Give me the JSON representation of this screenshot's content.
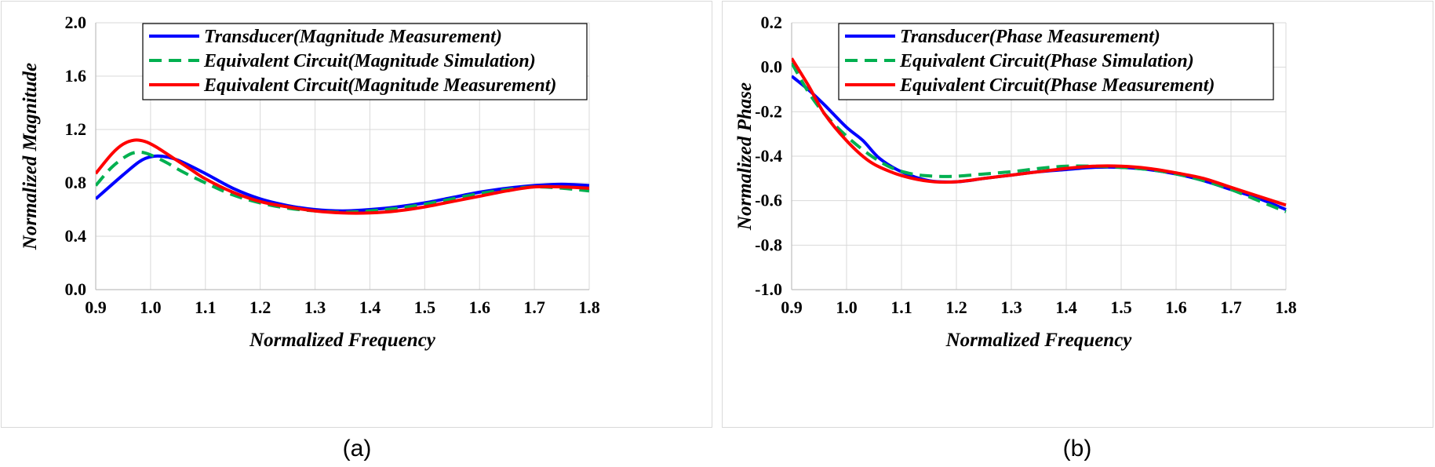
{
  "chart_data": [
    {
      "type": "line",
      "caption": "(a)",
      "xlabel": "Normalized Frequency",
      "ylabel": "Normalized Magnitude",
      "xlim": [
        0.9,
        1.8
      ],
      "ylim": [
        0.0,
        2.0
      ],
      "xticks": [
        "0.9",
        "1.0",
        "1.1",
        "1.2",
        "1.3",
        "1.4",
        "1.5",
        "1.6",
        "1.7",
        "1.8"
      ],
      "yticks": [
        "0.0",
        "0.4",
        "0.8",
        "1.2",
        "1.6",
        "2.0"
      ],
      "grid": true,
      "legend_position": "top-right",
      "series": [
        {
          "name": "Transducer(Magnitude Measurement)",
          "color": "#0000ff",
          "style": "solid",
          "x": [
            0.9,
            0.95,
            0.98,
            1.0,
            1.02,
            1.05,
            1.1,
            1.15,
            1.2,
            1.25,
            1.3,
            1.35,
            1.4,
            1.45,
            1.5,
            1.55,
            1.6,
            1.65,
            1.7,
            1.75,
            1.8
          ],
          "y": [
            0.68,
            0.86,
            0.96,
            0.995,
            1.0,
            0.97,
            0.87,
            0.76,
            0.68,
            0.63,
            0.6,
            0.59,
            0.6,
            0.62,
            0.65,
            0.69,
            0.73,
            0.76,
            0.78,
            0.79,
            0.78
          ]
        },
        {
          "name": "Equivalent Circuit(Magnitude Simulation)",
          "color": "#00b050",
          "style": "dashed",
          "x": [
            0.9,
            0.93,
            0.96,
            0.98,
            1.0,
            1.03,
            1.06,
            1.1,
            1.15,
            1.2,
            1.25,
            1.3,
            1.35,
            1.4,
            1.45,
            1.5,
            1.55,
            1.6,
            1.65,
            1.7,
            1.75,
            1.8
          ],
          "y": [
            0.78,
            0.92,
            1.01,
            1.03,
            1.01,
            0.95,
            0.88,
            0.8,
            0.71,
            0.65,
            0.61,
            0.59,
            0.58,
            0.59,
            0.61,
            0.64,
            0.68,
            0.72,
            0.75,
            0.77,
            0.76,
            0.74
          ]
        },
        {
          "name": "Equivalent Circuit(Magnitude Measurement)",
          "color": "#ff0000",
          "style": "solid",
          "x": [
            0.9,
            0.93,
            0.95,
            0.97,
            0.99,
            1.01,
            1.04,
            1.07,
            1.1,
            1.15,
            1.2,
            1.25,
            1.3,
            1.35,
            1.4,
            1.45,
            1.5,
            1.55,
            1.6,
            1.65,
            1.7,
            1.75,
            1.8
          ],
          "y": [
            0.87,
            1.02,
            1.09,
            1.12,
            1.11,
            1.07,
            0.99,
            0.91,
            0.83,
            0.73,
            0.66,
            0.62,
            0.59,
            0.575,
            0.575,
            0.59,
            0.62,
            0.66,
            0.7,
            0.74,
            0.77,
            0.77,
            0.76
          ]
        }
      ]
    },
    {
      "type": "line",
      "caption": "(b)",
      "xlabel": "Normalized Frequency",
      "ylabel": "Normalized Phase",
      "xlim": [
        0.9,
        1.8
      ],
      "ylim": [
        -1.0,
        0.2
      ],
      "xticks": [
        "0.9",
        "1.0",
        "1.1",
        "1.2",
        "1.3",
        "1.4",
        "1.5",
        "1.6",
        "1.7",
        "1.8"
      ],
      "yticks": [
        "-1.0",
        "-0.8",
        "-0.6",
        "-0.4",
        "-0.2",
        "0.0",
        "0.2"
      ],
      "grid": true,
      "legend_position": "top-right",
      "series": [
        {
          "name": "Transducer(Phase Measurement)",
          "color": "#0000ff",
          "style": "solid",
          "x": [
            0.9,
            0.93,
            0.96,
            1.0,
            1.03,
            1.06,
            1.1,
            1.15,
            1.2,
            1.25,
            1.3,
            1.35,
            1.4,
            1.45,
            1.5,
            1.55,
            1.6,
            1.65,
            1.7,
            1.75,
            1.8
          ],
          "y": [
            -0.04,
            -0.1,
            -0.17,
            -0.27,
            -0.33,
            -0.41,
            -0.47,
            -0.51,
            -0.515,
            -0.5,
            -0.485,
            -0.47,
            -0.46,
            -0.45,
            -0.45,
            -0.46,
            -0.48,
            -0.51,
            -0.55,
            -0.59,
            -0.64
          ]
        },
        {
          "name": "Equivalent Circuit(Phase Simulation)",
          "color": "#00b050",
          "style": "dashed",
          "x": [
            0.9,
            0.93,
            0.96,
            1.0,
            1.04,
            1.08,
            1.12,
            1.16,
            1.2,
            1.25,
            1.3,
            1.35,
            1.4,
            1.45,
            1.5,
            1.55,
            1.6,
            1.65,
            1.7,
            1.75,
            1.8
          ],
          "y": [
            0.02,
            -0.11,
            -0.21,
            -0.31,
            -0.39,
            -0.45,
            -0.48,
            -0.49,
            -0.49,
            -0.48,
            -0.47,
            -0.455,
            -0.445,
            -0.445,
            -0.45,
            -0.46,
            -0.48,
            -0.51,
            -0.55,
            -0.6,
            -0.65
          ]
        },
        {
          "name": "Equivalent Circuit(Phase Measurement)",
          "color": "#ff0000",
          "style": "solid",
          "x": [
            0.9,
            0.93,
            0.96,
            1.0,
            1.04,
            1.08,
            1.12,
            1.16,
            1.2,
            1.25,
            1.3,
            1.35,
            1.4,
            1.45,
            1.5,
            1.55,
            1.6,
            1.65,
            1.7,
            1.75,
            1.8
          ],
          "y": [
            0.04,
            -0.08,
            -0.21,
            -0.33,
            -0.42,
            -0.47,
            -0.5,
            -0.515,
            -0.515,
            -0.5,
            -0.485,
            -0.47,
            -0.455,
            -0.445,
            -0.445,
            -0.455,
            -0.475,
            -0.5,
            -0.54,
            -0.58,
            -0.62
          ]
        }
      ]
    }
  ]
}
